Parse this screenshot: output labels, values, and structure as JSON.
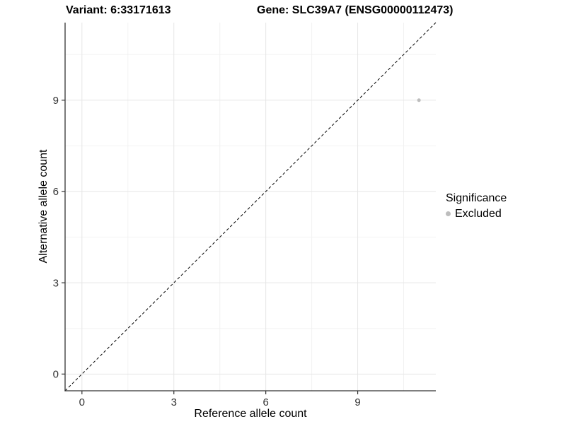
{
  "header": {
    "variant_title": "Variant: 6:33171613",
    "gene_title": "Gene: SLC39A7 (ENSG00000112473)"
  },
  "legend": {
    "title": "Significance",
    "items": [
      {
        "label": "Excluded",
        "color": "#bdbdbd"
      }
    ]
  },
  "chart_data": {
    "type": "scatter",
    "xlabel": "Reference allele count",
    "ylabel": "Alternative allele count",
    "xlim": [
      -0.55,
      11.55
    ],
    "ylim": [
      -0.55,
      11.55
    ],
    "xticks": [
      0,
      3,
      6,
      9
    ],
    "yticks": [
      0,
      3,
      6,
      9
    ],
    "minor_ticks_x": [
      1.5,
      4.5,
      7.5,
      10.5
    ],
    "minor_ticks_y": [
      1.5,
      4.5,
      7.5,
      10.5
    ],
    "grid": "major+minor",
    "legend_position": "right",
    "identity_line": {
      "style": "dashed",
      "color": "#000000",
      "from": -0.55,
      "to": 11.55
    },
    "series": [
      {
        "name": "Excluded",
        "color": "#bdbdbd",
        "points": [
          {
            "x": 11,
            "y": 9
          }
        ]
      }
    ],
    "style": {
      "grid_major_color": "#e6e6e6",
      "grid_minor_color": "#f2f2f2",
      "axis_line_color": "#333333",
      "tick_color": "#333333",
      "tick_label_color": "#333333",
      "tick_label_size": 15,
      "point_radius": 2.5,
      "background": "#ffffff"
    }
  }
}
